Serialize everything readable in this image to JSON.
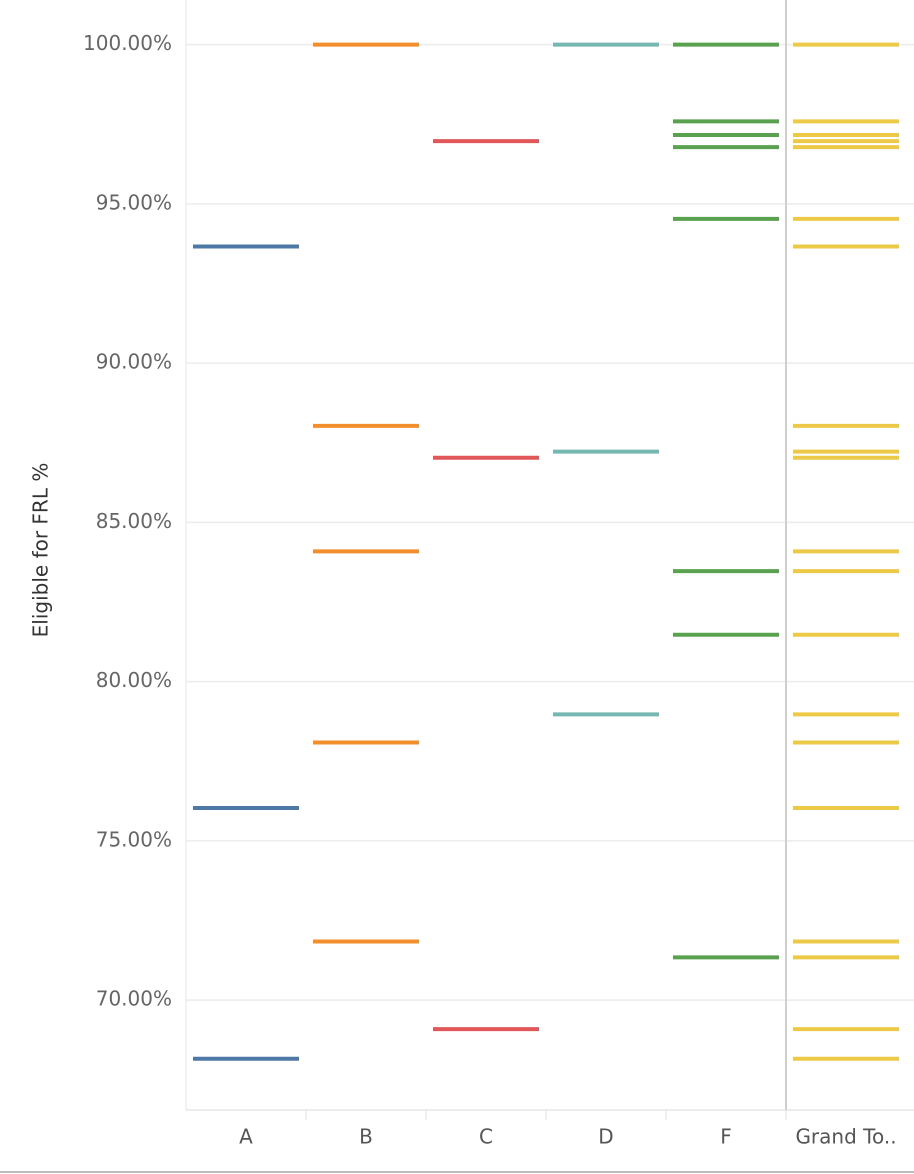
{
  "chart_data": {
    "type": "strip",
    "y_label": "Eligible for FRL %",
    "ylim": [
      66.55,
      101.4
    ],
    "yticks": [
      {
        "value": 70,
        "label": "70.00%"
      },
      {
        "value": 75,
        "label": "75.00%"
      },
      {
        "value": 80,
        "label": "80.00%"
      },
      {
        "value": 85,
        "label": "85.00%"
      },
      {
        "value": 90,
        "label": "90.00%"
      },
      {
        "value": 95,
        "label": "95.00%"
      },
      {
        "value": 100,
        "label": "100.00%"
      }
    ],
    "grid": true,
    "groups": [
      {
        "label": "A",
        "color": "#4e79a7",
        "values": [
          93.66,
          76.03,
          68.16
        ]
      },
      {
        "label": "B",
        "color": "#f28e2b",
        "values": [
          100,
          88.03,
          84.09,
          78.09,
          71.84
        ]
      },
      {
        "label": "C",
        "color": "#e15759",
        "values": [
          96.97,
          87.03,
          69.09
        ]
      },
      {
        "label": "D",
        "color": "#76b7b2",
        "values": [
          100,
          87.22,
          78.97
        ]
      },
      {
        "label": "F",
        "color": "#59a14f",
        "values": [
          100,
          97.59,
          97.16,
          96.78,
          94.53,
          83.47,
          81.47,
          71.34
        ]
      },
      {
        "label": "Grand To..",
        "color": "#edc948",
        "values": [
          100,
          97.59,
          97.16,
          96.97,
          96.78,
          94.53,
          93.66,
          88.03,
          87.22,
          87.03,
          84.09,
          83.47,
          81.47,
          78.97,
          78.09,
          76.03,
          71.84,
          71.34,
          69.09,
          68.16
        ]
      }
    ]
  }
}
